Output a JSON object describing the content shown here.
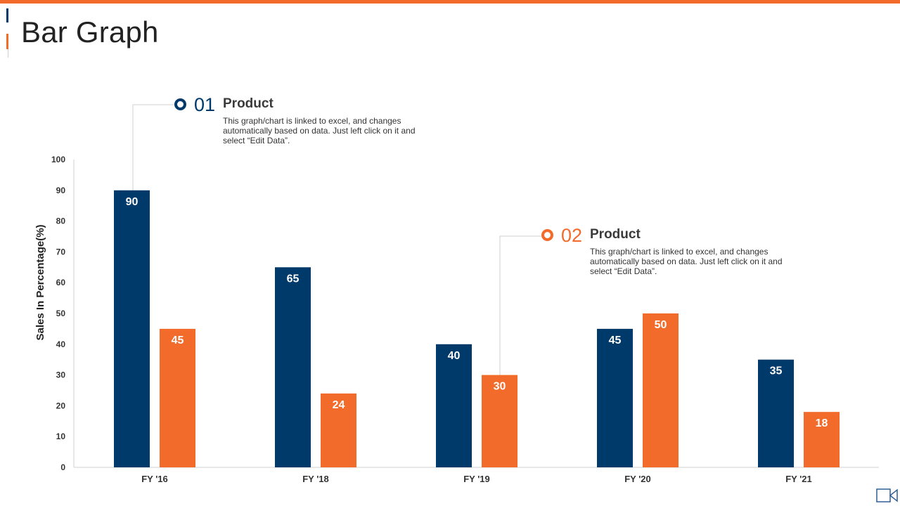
{
  "page": {
    "title": "Bar Graph"
  },
  "colors": {
    "accent": "#f26b2a",
    "navy": "#003a6b",
    "orange": "#f26b2a",
    "axis": "#d0d0d0",
    "text": "#222222"
  },
  "callouts": [
    {
      "number": "01",
      "heading": "Product",
      "description": "This graph/chart is linked to excel, and changes automatically based on data. Just left click on it and select “Edit Data”."
    },
    {
      "number": "02",
      "heading": "Product",
      "description": "This graph/chart is linked to excel, and changes automatically based on data. Just left click on it and select “Edit Data”."
    }
  ],
  "icons": {
    "video": "video-camera-icon"
  },
  "chart_data": {
    "type": "bar",
    "title": "",
    "xlabel": "",
    "ylabel": "Sales In Percentage(%)",
    "categories": [
      "FY '16",
      "FY '18",
      "FY '19",
      "FY '20",
      "FY '21"
    ],
    "series": [
      {
        "color": "#003a6b",
        "values": [
          90,
          65,
          40,
          45,
          35
        ]
      },
      {
        "color": "#f26b2a",
        "values": [
          45,
          24,
          30,
          50,
          18
        ]
      }
    ],
    "ylim": [
      0,
      100
    ],
    "yticks": [
      0,
      10,
      20,
      30,
      40,
      50,
      60,
      70,
      80,
      90,
      100
    ],
    "grid": false,
    "legend": "none",
    "data_labels": true
  }
}
